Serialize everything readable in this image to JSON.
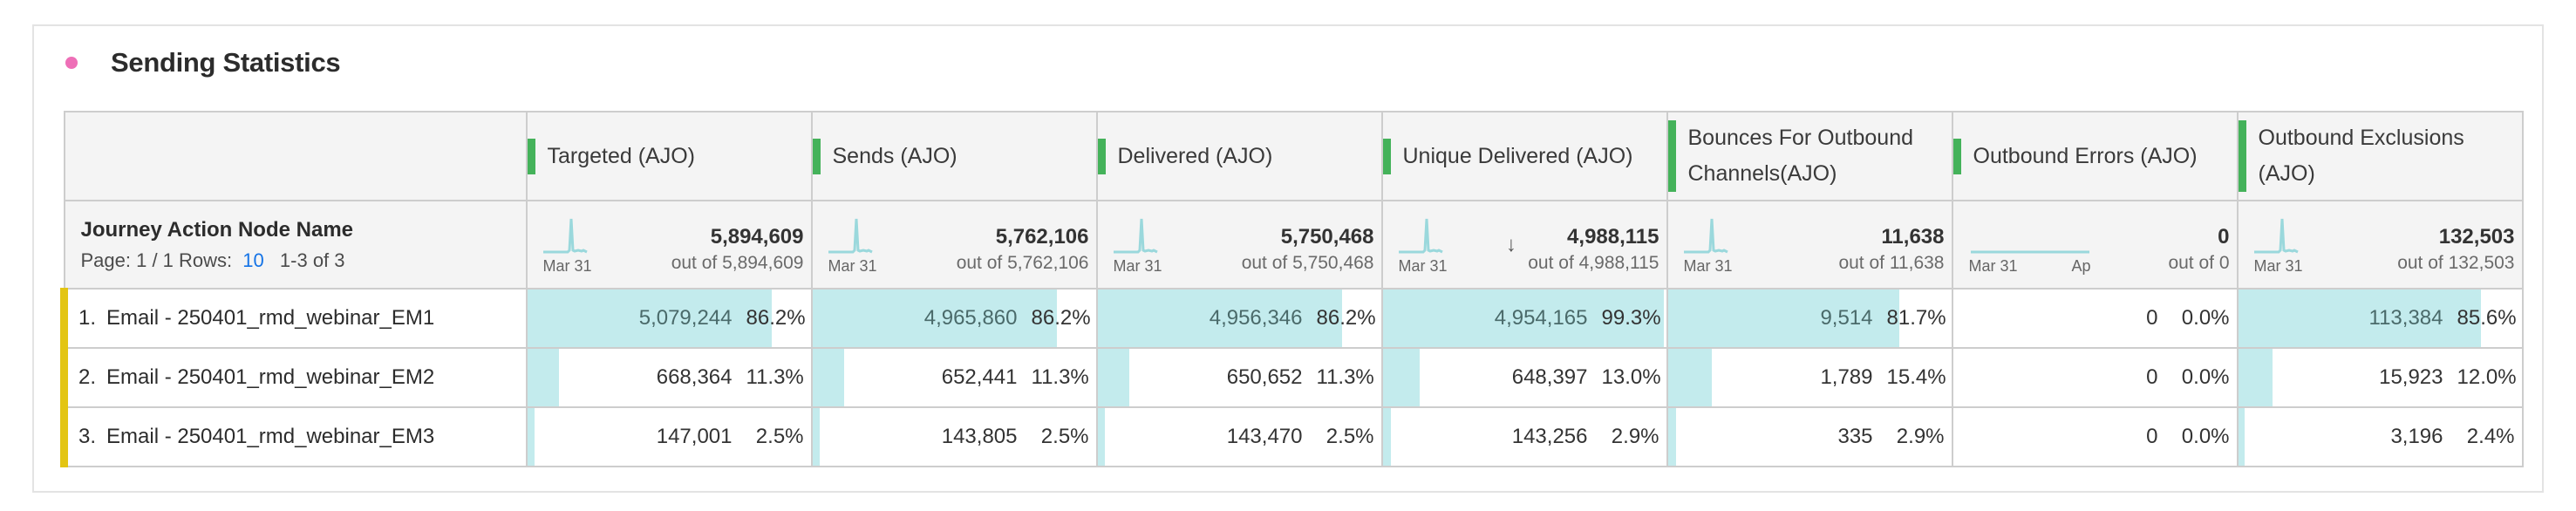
{
  "panel": {
    "title": "Sending Statistics",
    "dot_color": "#ee6fb7"
  },
  "table": {
    "dimension": {
      "label": "Journey Action Node Name",
      "page_label": "Page: 1 / 1",
      "rows_label": "Rows:",
      "rows_value": "10",
      "range_label": "1-3 of 3"
    },
    "columns": [
      {
        "label": "Targeted (AJO)",
        "total": "5,894,609",
        "out_of": "out of 5,894,609",
        "spark_labels": [
          "Mar 31"
        ],
        "spark": "spike",
        "trend": ""
      },
      {
        "label": "Sends (AJO)",
        "total": "5,762,106",
        "out_of": "out of 5,762,106",
        "spark_labels": [
          "Mar 31"
        ],
        "spark": "spike",
        "trend": ""
      },
      {
        "label": "Delivered (AJO)",
        "total": "5,750,468",
        "out_of": "out of 5,750,468",
        "spark_labels": [
          "Mar 31"
        ],
        "spark": "spike",
        "trend": ""
      },
      {
        "label": "Unique Delivered (AJO)",
        "total": "4,988,115",
        "out_of": "out of 4,988,115",
        "spark_labels": [
          "Mar 31"
        ],
        "spark": "spike",
        "trend": "↓"
      },
      {
        "label": "Bounces For Outbound Channels(AJO)",
        "total": "11,638",
        "out_of": "out of 11,638",
        "spark_labels": [
          "Mar 31"
        ],
        "spark": "spike",
        "trend": ""
      },
      {
        "label": "Outbound Errors (AJO)",
        "total": "0",
        "out_of": "out of 0",
        "spark_labels": [
          "Mar 31",
          "Ap"
        ],
        "spark": "flat",
        "trend": ""
      },
      {
        "label": "Outbound Exclusions (AJO)",
        "total": "132,503",
        "out_of": "out of 132,503",
        "spark_labels": [
          "Mar 31"
        ],
        "spark": "spike",
        "trend": ""
      }
    ],
    "rows": [
      {
        "num": "1.",
        "name": "Email - 250401_rmd_webinar_EM1",
        "cells": [
          {
            "value": "5,079,244",
            "pct": "86.2%",
            "fill": 0.862
          },
          {
            "value": "4,965,860",
            "pct": "86.2%",
            "fill": 0.862
          },
          {
            "value": "4,956,346",
            "pct": "86.2%",
            "fill": 0.862
          },
          {
            "value": "4,954,165",
            "pct": "99.3%",
            "fill": 0.993
          },
          {
            "value": "9,514",
            "pct": "81.7%",
            "fill": 0.817
          },
          {
            "value": "0",
            "pct": "0.0%",
            "fill": 0.0
          },
          {
            "value": "113,384",
            "pct": "85.6%",
            "fill": 0.856
          }
        ]
      },
      {
        "num": "2.",
        "name": "Email - 250401_rmd_webinar_EM2",
        "cells": [
          {
            "value": "668,364",
            "pct": "11.3%",
            "fill": 0.113
          },
          {
            "value": "652,441",
            "pct": "11.3%",
            "fill": 0.113
          },
          {
            "value": "650,652",
            "pct": "11.3%",
            "fill": 0.113
          },
          {
            "value": "648,397",
            "pct": "13.0%",
            "fill": 0.13
          },
          {
            "value": "1,789",
            "pct": "15.4%",
            "fill": 0.154
          },
          {
            "value": "0",
            "pct": "0.0%",
            "fill": 0.0
          },
          {
            "value": "15,923",
            "pct": "12.0%",
            "fill": 0.12
          }
        ]
      },
      {
        "num": "3.",
        "name": "Email - 250401_rmd_webinar_EM3",
        "cells": [
          {
            "value": "147,001",
            "pct": "2.5%",
            "fill": 0.025
          },
          {
            "value": "143,805",
            "pct": "2.5%",
            "fill": 0.025
          },
          {
            "value": "143,470",
            "pct": "2.5%",
            "fill": 0.025
          },
          {
            "value": "143,256",
            "pct": "2.9%",
            "fill": 0.029
          },
          {
            "value": "335",
            "pct": "2.9%",
            "fill": 0.029
          },
          {
            "value": "0",
            "pct": "0.0%",
            "fill": 0.0
          },
          {
            "value": "3,196",
            "pct": "2.4%",
            "fill": 0.024
          }
        ]
      }
    ]
  },
  "colors": {
    "column_accent": "#44b25a",
    "row_accent": "#e3c513",
    "bar_fill": "#c3ebed",
    "sparkline": "#9ad8dc",
    "link": "#1473e6"
  }
}
